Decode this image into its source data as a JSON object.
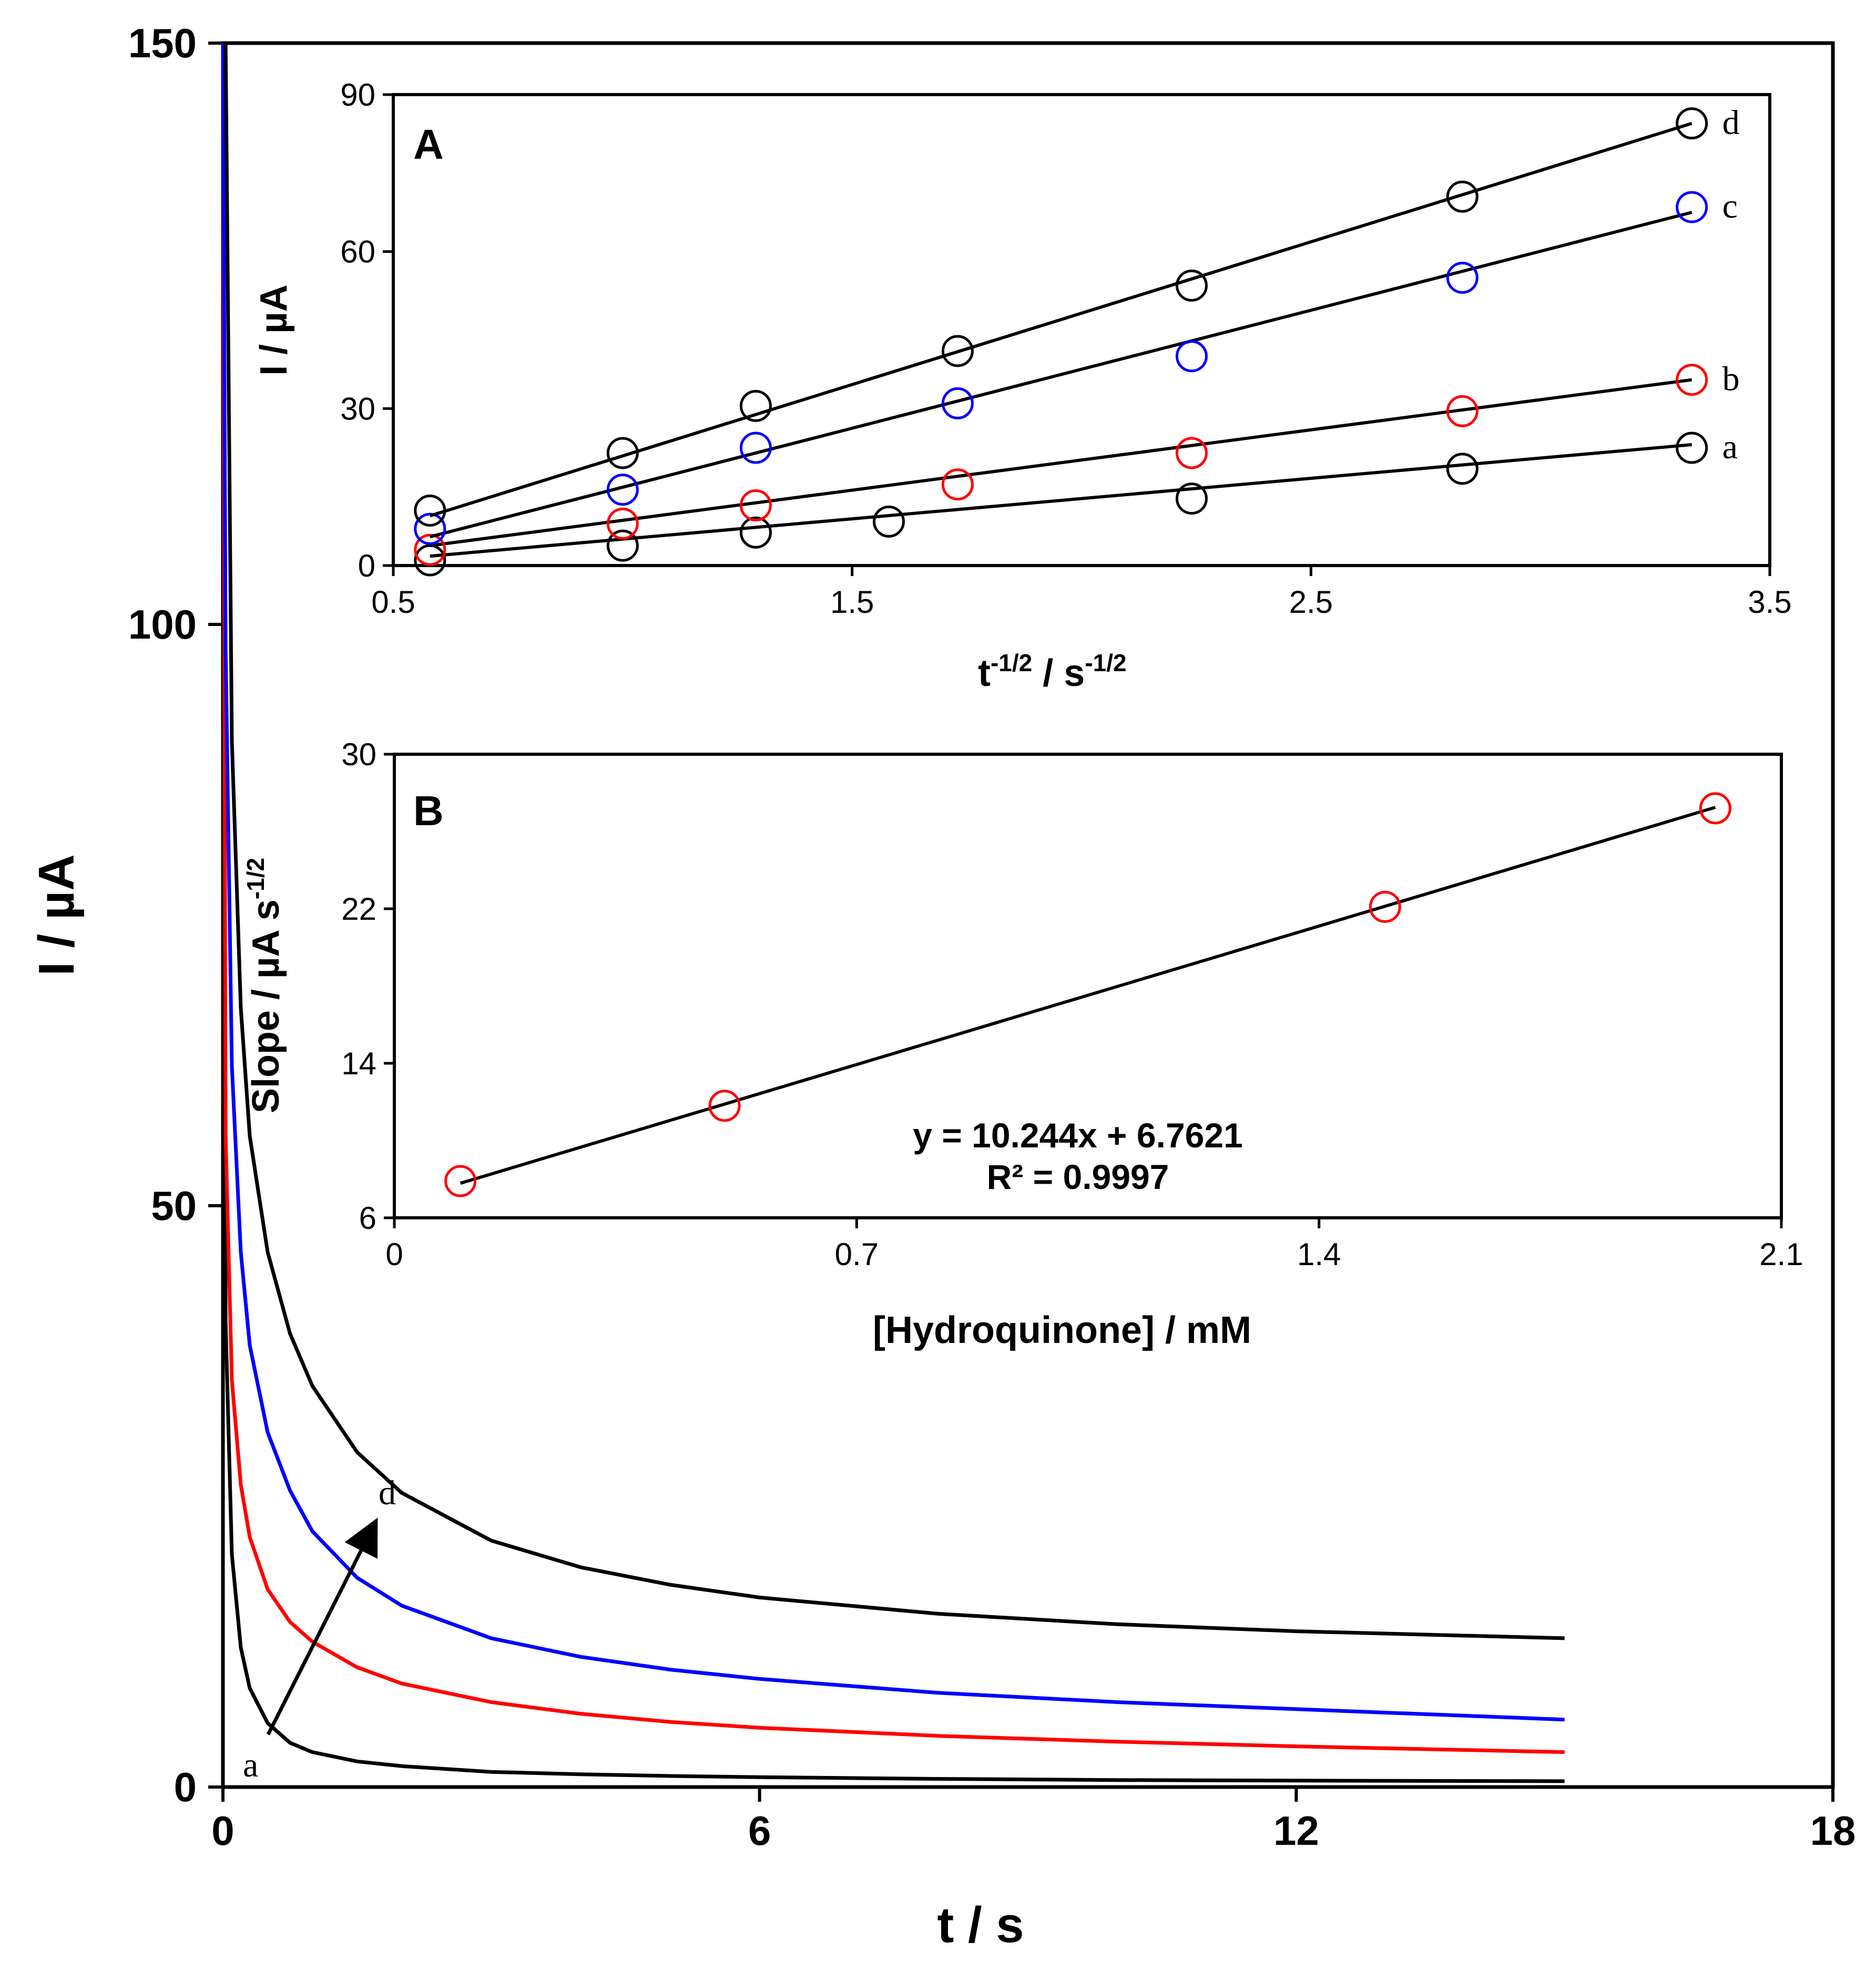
{
  "chart_data": [
    {
      "type": "line",
      "panel": "main",
      "title": "",
      "xlabel": "t / s",
      "ylabel": "I / µA",
      "xlim": [
        0,
        18
      ],
      "ylim": [
        0,
        150
      ],
      "xticks": [
        0,
        6,
        12,
        18
      ],
      "yticks": [
        0,
        50,
        100,
        150
      ],
      "xtick_labels": [
        "0",
        "6",
        "12",
        "18"
      ],
      "ytick_labels": [
        "0",
        "50",
        "100",
        "150"
      ],
      "grid": false,
      "annotation": {
        "from_label": "a",
        "to_label": "d",
        "arrow": "a → d"
      },
      "series": [
        {
          "name": "a",
          "color": "#000000",
          "x": [
            0.03,
            0.1,
            0.2,
            0.3,
            0.5,
            0.75,
            1,
            1.5,
            2,
            3,
            4,
            5,
            6,
            8,
            10,
            12,
            15
          ],
          "y": [
            40,
            20,
            12,
            8.5,
            5.5,
            3.8,
            3.0,
            2.2,
            1.8,
            1.3,
            1.1,
            0.95,
            0.85,
            0.7,
            0.6,
            0.55,
            0.5
          ]
        },
        {
          "name": "b",
          "color": "#ff0000",
          "x": [
            0.03,
            0.1,
            0.2,
            0.3,
            0.5,
            0.75,
            1,
            1.5,
            2,
            3,
            4,
            5,
            6,
            8,
            10,
            12,
            15
          ],
          "y": [
            56,
            35,
            26,
            21.5,
            17,
            14.2,
            12.5,
            10.3,
            8.9,
            7.3,
            6.3,
            5.6,
            5.1,
            4.4,
            3.9,
            3.5,
            3.0
          ]
        },
        {
          "name": "c",
          "color": "#0000ff",
          "x": [
            0.03,
            0.1,
            0.2,
            0.3,
            0.5,
            0.75,
            1,
            1.5,
            2,
            3,
            4,
            5,
            6,
            8,
            10,
            12,
            15
          ],
          "y": [
            98,
            62,
            46,
            38,
            30.5,
            25.5,
            22,
            18,
            15.6,
            12.8,
            11.2,
            10.1,
            9.3,
            8.1,
            7.3,
            6.7,
            5.8
          ]
        },
        {
          "name": "d",
          "color": "#000000",
          "x": [
            0.03,
            0.1,
            0.2,
            0.3,
            0.5,
            0.75,
            1,
            1.5,
            2,
            3,
            4,
            5,
            6,
            8,
            10,
            12,
            15
          ],
          "y": [
            150,
            90,
            67,
            56,
            46,
            39,
            34.5,
            28.8,
            25.3,
            21.2,
            18.9,
            17.4,
            16.3,
            14.9,
            14.0,
            13.4,
            12.8
          ]
        }
      ]
    },
    {
      "type": "scatter",
      "panel": "inset-A",
      "panel_label": "A",
      "xlabel_main": "t",
      "xlabel_main_sup": "-1/2",
      "xlabel_unit": " / s",
      "xlabel_unit_sup": "-1/2",
      "ylabel": "I / µA",
      "xlim": [
        0.5,
        3.5
      ],
      "ylim": [
        0,
        90
      ],
      "xticks": [
        0.5,
        1.5,
        2.5,
        3.5
      ],
      "yticks": [
        0,
        30,
        60,
        90
      ],
      "xtick_labels": [
        "0.5",
        "1.5",
        "2.5",
        "3.5"
      ],
      "ytick_labels": [
        "0",
        "30",
        "60",
        "90"
      ],
      "grid": false,
      "fit": "linear",
      "series": [
        {
          "name": "a",
          "color": "#000000",
          "x": [
            0.58,
            1.0,
            1.29,
            1.58,
            2.24,
            2.83,
            3.33
          ],
          "y": [
            1,
            3.8,
            6.3,
            8.4,
            12.8,
            18.5,
            22.5
          ],
          "fit_line": [
            [
              0.58,
              1.8
            ],
            [
              3.33,
              23.1
            ]
          ]
        },
        {
          "name": "b",
          "color": "#ff0000",
          "x": [
            0.58,
            1.0,
            1.29,
            1.73,
            2.24,
            2.83,
            3.33
          ],
          "y": [
            3,
            8,
            11.5,
            15.5,
            21.5,
            29.5,
            35.5
          ],
          "fit_line": [
            [
              0.58,
              3.8
            ],
            [
              3.33,
              35.5
            ]
          ]
        },
        {
          "name": "c",
          "color": "#0000ff",
          "x": [
            0.58,
            1.0,
            1.29,
            1.73,
            2.24,
            2.83,
            3.33
          ],
          "y": [
            7,
            14.5,
            22.5,
            31,
            40,
            55,
            68.5
          ],
          "fit_line": [
            [
              0.58,
              5.5
            ],
            [
              3.33,
              67.5
            ]
          ]
        },
        {
          "name": "d",
          "color": "#000000",
          "x": [
            0.58,
            1.0,
            1.29,
            1.73,
            2.24,
            2.83,
            3.33
          ],
          "y": [
            10.5,
            21.5,
            30.5,
            41,
            53.5,
            70.5,
            84.5
          ],
          "fit_line": [
            [
              0.58,
              9.5
            ],
            [
              3.33,
              84.5
            ]
          ]
        }
      ]
    },
    {
      "type": "scatter",
      "panel": "inset-B",
      "panel_label": "B",
      "xlabel": "[Hydroquinone] / mM",
      "ylabel_main": "Slope / µA s",
      "ylabel_sup": "-1/2",
      "xlim": [
        0,
        2.1
      ],
      "ylim": [
        6,
        30
      ],
      "xticks": [
        0,
        0.7,
        1.4,
        2.1
      ],
      "yticks": [
        6,
        14,
        22,
        30
      ],
      "xtick_labels": [
        "0",
        "0.7",
        "1.4",
        "2.1"
      ],
      "ytick_labels": [
        "6",
        "14",
        "22",
        "30"
      ],
      "grid": false,
      "equation": "y = 10.244x  + 6.7621",
      "r_squared": "R² = 0.9997",
      "series": [
        {
          "name": "slope",
          "color": "#ff0000",
          "x": [
            0.1,
            0.5,
            1.5,
            2.0
          ],
          "y": [
            7.9,
            11.8,
            22.1,
            27.2
          ],
          "fit_line": [
            [
              0.1,
              7.79
            ],
            [
              2.0,
              27.25
            ]
          ]
        }
      ]
    }
  ]
}
